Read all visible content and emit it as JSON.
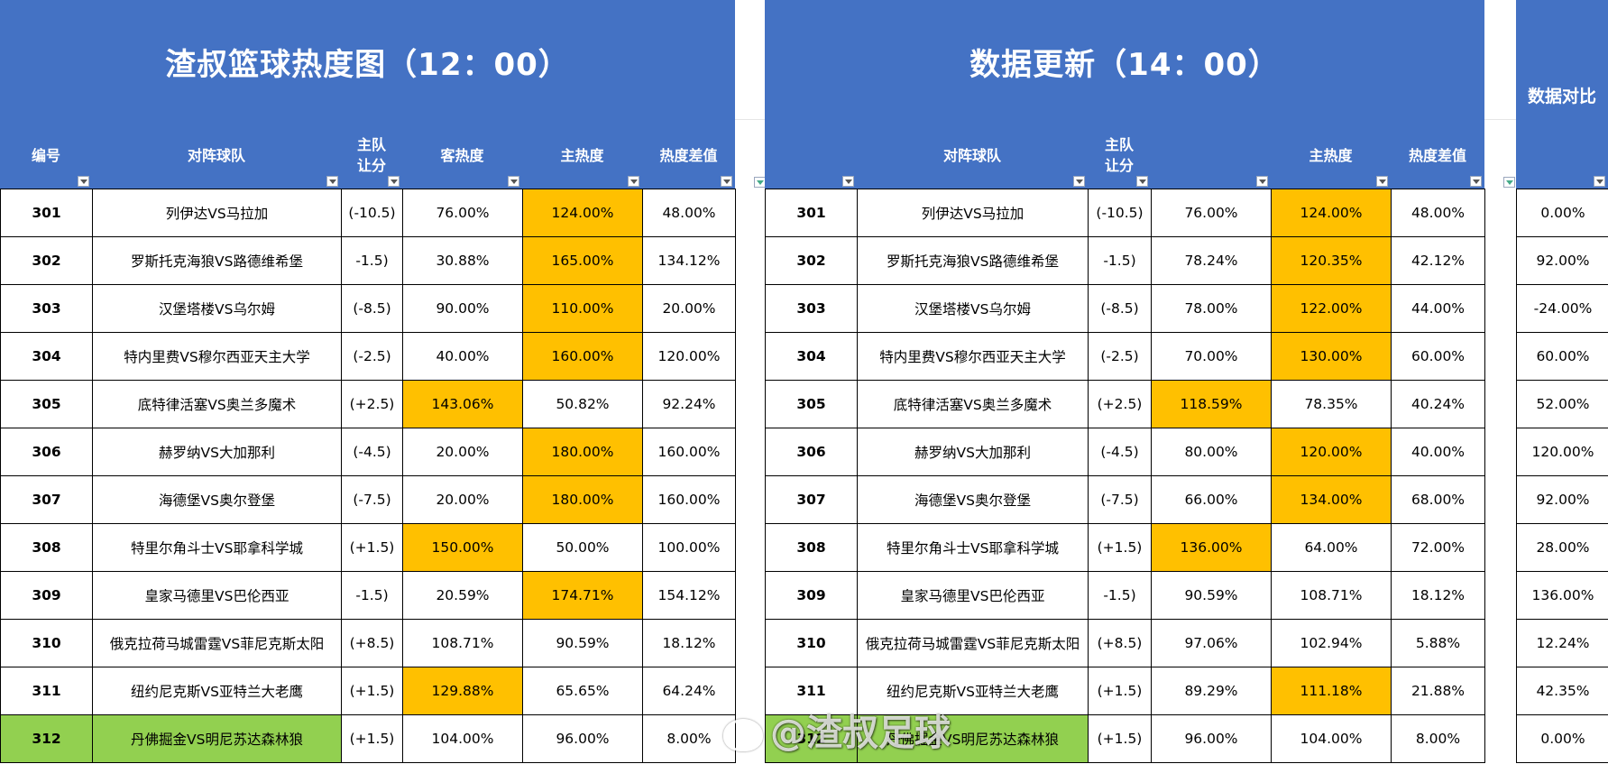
{
  "panel1": {
    "title": "渣叔篮球热度图（12：00）",
    "headers": [
      "编号",
      "对阵球队",
      "主队\n让分",
      "客热度",
      "主热度",
      "热度差值"
    ],
    "rows": [
      {
        "id": "301",
        "match": "列伊达VS马拉加",
        "spread": "(-10.5)",
        "away": "76.00%",
        "home": "124.00%",
        "diff": "48.00%",
        "hl": "home"
      },
      {
        "id": "302",
        "match": "罗斯托克海狼VS路德维希堡",
        "spread": "-1.5)",
        "away": "30.88%",
        "home": "165.00%",
        "diff": "134.12%",
        "hl": "home"
      },
      {
        "id": "303",
        "match": "汉堡塔楼VS乌尔姆",
        "spread": "(-8.5)",
        "away": "90.00%",
        "home": "110.00%",
        "diff": "20.00%",
        "hl": "home"
      },
      {
        "id": "304",
        "match": "特内里费VS穆尔西亚天主大学",
        "spread": "(-2.5)",
        "away": "40.00%",
        "home": "160.00%",
        "diff": "120.00%",
        "hl": "home"
      },
      {
        "id": "305",
        "match": "底特律活塞VS奥兰多魔术",
        "spread": "(+2.5)",
        "away": "143.06%",
        "home": "50.82%",
        "diff": "92.24%",
        "hl": "away"
      },
      {
        "id": "306",
        "match": "赫罗纳VS大加那利",
        "spread": "(-4.5)",
        "away": "20.00%",
        "home": "180.00%",
        "diff": "160.00%",
        "hl": "home"
      },
      {
        "id": "307",
        "match": "海德堡VS奥尔登堡",
        "spread": "(-7.5)",
        "away": "20.00%",
        "home": "180.00%",
        "diff": "160.00%",
        "hl": "home"
      },
      {
        "id": "308",
        "match": "特里尔角斗士VS耶拿科学城",
        "spread": "(+1.5)",
        "away": "150.00%",
        "home": "50.00%",
        "diff": "100.00%",
        "hl": "away"
      },
      {
        "id": "309",
        "match": "皇家马德里VS巴伦西亚",
        "spread": "-1.5)",
        "away": "20.59%",
        "home": "174.71%",
        "diff": "154.12%",
        "hl": "home"
      },
      {
        "id": "310",
        "match": "俄克拉荷马城雷霆VS菲尼克斯太阳",
        "spread": "(+8.5)",
        "away": "108.71%",
        "home": "90.59%",
        "diff": "18.12%",
        "hl": ""
      },
      {
        "id": "311",
        "match": "纽约尼克斯VS亚特兰大老鹰",
        "spread": "(+1.5)",
        "away": "129.88%",
        "home": "65.65%",
        "diff": "64.24%",
        "hl": "away"
      },
      {
        "id": "312",
        "match": "丹佛掘金VS明尼苏达森林狼",
        "spread": "(+1.5)",
        "away": "104.00%",
        "home": "96.00%",
        "diff": "8.00%",
        "hl": "",
        "green": true
      }
    ]
  },
  "panel2": {
    "title": "数据更新（14：00）",
    "headers": [
      "",
      "对阵球队",
      "主队\n让分",
      "",
      "主热度",
      "热度差值"
    ],
    "rows": [
      {
        "id": "301",
        "match": "列伊达VS马拉加",
        "spread": "(-10.5)",
        "away": "76.00%",
        "home": "124.00%",
        "diff": "48.00%",
        "hl": "home"
      },
      {
        "id": "302",
        "match": "罗斯托克海狼VS路德维希堡",
        "spread": "-1.5)",
        "away": "78.24%",
        "home": "120.35%",
        "diff": "42.12%",
        "hl": "home"
      },
      {
        "id": "303",
        "match": "汉堡塔楼VS乌尔姆",
        "spread": "(-8.5)",
        "away": "78.00%",
        "home": "122.00%",
        "diff": "44.00%",
        "hl": "home"
      },
      {
        "id": "304",
        "match": "特内里费VS穆尔西亚天主大学",
        "spread": "(-2.5)",
        "away": "70.00%",
        "home": "130.00%",
        "diff": "60.00%",
        "hl": "home"
      },
      {
        "id": "305",
        "match": "底特律活塞VS奥兰多魔术",
        "spread": "(+2.5)",
        "away": "118.59%",
        "home": "78.35%",
        "diff": "40.24%",
        "hl": "away"
      },
      {
        "id": "306",
        "match": "赫罗纳VS大加那利",
        "spread": "(-4.5)",
        "away": "80.00%",
        "home": "120.00%",
        "diff": "40.00%",
        "hl": "home"
      },
      {
        "id": "307",
        "match": "海德堡VS奥尔登堡",
        "spread": "(-7.5)",
        "away": "66.00%",
        "home": "134.00%",
        "diff": "68.00%",
        "hl": "home"
      },
      {
        "id": "308",
        "match": "特里尔角斗士VS耶拿科学城",
        "spread": "(+1.5)",
        "away": "136.00%",
        "home": "64.00%",
        "diff": "72.00%",
        "hl": "away"
      },
      {
        "id": "309",
        "match": "皇家马德里VS巴伦西亚",
        "spread": "-1.5)",
        "away": "90.59%",
        "home": "108.71%",
        "diff": "18.12%",
        "hl": ""
      },
      {
        "id": "310",
        "match": "俄克拉荷马城雷霆VS菲尼克斯太阳",
        "spread": "(+8.5)",
        "away": "97.06%",
        "home": "102.94%",
        "diff": "5.88%",
        "hl": ""
      },
      {
        "id": "311",
        "match": "纽约尼克斯VS亚特兰大老鹰",
        "spread": "(+1.5)",
        "away": "89.29%",
        "home": "111.18%",
        "diff": "21.88%",
        "hl": "home"
      },
      {
        "id": "312",
        "match": "丹佛掘金VS明尼苏达森林狼",
        "spread": "(+1.5)",
        "away": "96.00%",
        "home": "104.00%",
        "diff": "8.00%",
        "hl": "",
        "green": true
      }
    ]
  },
  "panel3": {
    "title": "数据对比",
    "values": [
      "0.00%",
      "92.00%",
      "-24.00%",
      "60.00%",
      "52.00%",
      "120.00%",
      "92.00%",
      "28.00%",
      "136.00%",
      "12.24%",
      "42.35%",
      "0.00%"
    ]
  },
  "watermark": "@渣叔足球",
  "colors": {
    "header": "#4472c4",
    "highlight": "#ffc000",
    "green": "#92d050"
  }
}
